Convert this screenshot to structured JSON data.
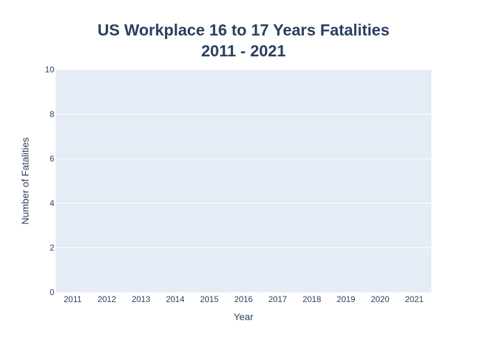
{
  "chart_data": {
    "type": "bar",
    "title": "US Workplace 16 to 17 Years Fatalities",
    "subtitle": "2011 - 2021",
    "xlabel": "Year",
    "ylabel": "Number of Fatalities",
    "categories": [
      "2011",
      "2012",
      "2013",
      "2014",
      "2015",
      "2016",
      "2017",
      "2018",
      "2019",
      "2020",
      "2021"
    ],
    "values": [
      0,
      0,
      0,
      0,
      0,
      0,
      0,
      0,
      0,
      0,
      0
    ],
    "ylim": [
      0,
      10
    ],
    "yticks": [
      0,
      2,
      4,
      6,
      8,
      10
    ],
    "grid": true,
    "colors": {
      "plot_background": "#e5ecf6",
      "grid": "#ffffff",
      "text": "#2a3f5f",
      "bar": "#636efa"
    }
  }
}
